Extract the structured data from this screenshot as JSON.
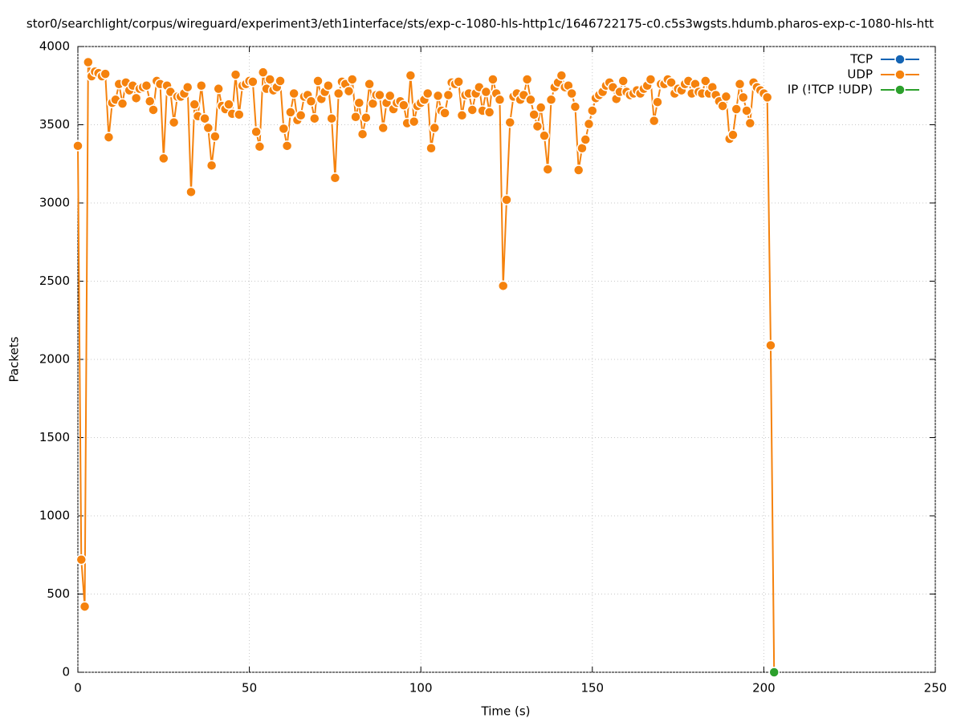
{
  "chart_data": {
    "type": "line",
    "title": "stor0/searchlight/corpus/wireguard/experiment3/eth1interface/sts/exp-c-1080-hls-http1c/1646722175-c0.c5s3wgsts.hdumb.pharos-exp-c-1080-hls-htt",
    "x_label": "Time (s)",
    "y_label": "Packets",
    "xlim": [
      0,
      250
    ],
    "xticks": [
      0,
      50,
      100,
      150,
      200,
      250
    ],
    "ylim": [
      0,
      4000
    ],
    "yticks": [
      0,
      500,
      1000,
      1500,
      2000,
      2500,
      3000,
      3500,
      4000
    ],
    "grid": true,
    "legend": "top-right",
    "series": [
      {
        "name": "TCP",
        "color": "#1464b4",
        "x": [],
        "values": []
      },
      {
        "name": "UDP",
        "color": "#f5820d",
        "x": [
          0,
          1,
          2,
          3,
          4,
          5,
          6,
          7,
          8,
          9,
          10,
          11,
          12,
          13,
          14,
          15,
          16,
          17,
          18,
          19,
          20,
          21,
          22,
          23,
          24,
          25,
          26,
          27,
          28,
          29,
          30,
          31,
          32,
          33,
          34,
          35,
          36,
          37,
          38,
          39,
          40,
          41,
          42,
          43,
          44,
          45,
          46,
          47,
          48,
          49,
          50,
          51,
          52,
          53,
          54,
          55,
          56,
          57,
          58,
          59,
          60,
          61,
          62,
          63,
          64,
          65,
          66,
          67,
          68,
          69,
          70,
          71,
          72,
          73,
          74,
          75,
          76,
          77,
          78,
          79,
          80,
          81,
          82,
          83,
          84,
          85,
          86,
          87,
          88,
          89,
          90,
          91,
          92,
          93,
          94,
          95,
          96,
          97,
          98,
          99,
          100,
          101,
          102,
          103,
          104,
          105,
          106,
          107,
          108,
          109,
          110,
          111,
          112,
          113,
          114,
          115,
          116,
          117,
          118,
          119,
          120,
          121,
          122,
          123,
          124,
          125,
          126,
          127,
          128,
          129,
          130,
          131,
          132,
          133,
          134,
          135,
          136,
          137,
          138,
          139,
          140,
          141,
          142,
          143,
          144,
          145,
          146,
          147,
          148,
          149,
          150,
          151,
          152,
          153,
          154,
          155,
          156,
          157,
          158,
          159,
          160,
          161,
          162,
          163,
          164,
          165,
          166,
          167,
          168,
          169,
          170,
          171,
          172,
          173,
          174,
          175,
          176,
          177,
          178,
          179,
          180,
          181,
          182,
          183,
          184,
          185,
          186,
          187,
          188,
          189,
          190,
          191,
          192,
          193,
          194,
          195,
          196,
          197,
          198,
          199,
          200,
          201,
          202,
          203
        ],
        "values": [
          3365,
          720,
          420,
          3900,
          3810,
          3840,
          3830,
          3810,
          3825,
          3420,
          3640,
          3660,
          3760,
          3635,
          3770,
          3720,
          3750,
          3670,
          3730,
          3740,
          3750,
          3650,
          3595,
          3780,
          3760,
          3285,
          3750,
          3710,
          3515,
          3680,
          3680,
          3700,
          3740,
          3070,
          3630,
          3555,
          3750,
          3540,
          3480,
          3240,
          3425,
          3730,
          3620,
          3600,
          3630,
          3570,
          3820,
          3565,
          3750,
          3760,
          3780,
          3775,
          3455,
          3360,
          3835,
          3730,
          3790,
          3720,
          3740,
          3780,
          3475,
          3365,
          3580,
          3700,
          3530,
          3560,
          3680,
          3690,
          3650,
          3540,
          3780,
          3665,
          3710,
          3750,
          3540,
          3160,
          3700,
          3775,
          3760,
          3715,
          3790,
          3550,
          3640,
          3440,
          3545,
          3760,
          3635,
          3690,
          3690,
          3480,
          3640,
          3685,
          3600,
          3640,
          3650,
          3625,
          3510,
          3815,
          3520,
          3620,
          3640,
          3660,
          3700,
          3350,
          3480,
          3685,
          3590,
          3575,
          3690,
          3770,
          3760,
          3775,
          3560,
          3690,
          3700,
          3595,
          3700,
          3740,
          3590,
          3710,
          3580,
          3790,
          3700,
          3660,
          2470,
          3020,
          3515,
          3680,
          3700,
          3660,
          3690,
          3790,
          3660,
          3565,
          3490,
          3610,
          3430,
          3215,
          3660,
          3740,
          3770,
          3815,
          3740,
          3750,
          3700,
          3615,
          3210,
          3350,
          3405,
          3505,
          3590,
          3670,
          3690,
          3710,
          3750,
          3770,
          3740,
          3665,
          3710,
          3780,
          3710,
          3690,
          3700,
          3720,
          3700,
          3730,
          3750,
          3790,
          3525,
          3645,
          3760,
          3760,
          3790,
          3770,
          3700,
          3730,
          3720,
          3760,
          3780,
          3700,
          3760,
          3710,
          3700,
          3780,
          3700,
          3740,
          3690,
          3650,
          3620,
          3680,
          3410,
          3435,
          3600,
          3760,
          3675,
          3590,
          3510,
          3770,
          3740,
          3720,
          3700,
          3675,
          2090,
          0
        ]
      },
      {
        "name": "IP (!TCP  !UDP)",
        "color": "#2ca02c",
        "x": [
          203
        ],
        "values": [
          0
        ]
      }
    ]
  }
}
